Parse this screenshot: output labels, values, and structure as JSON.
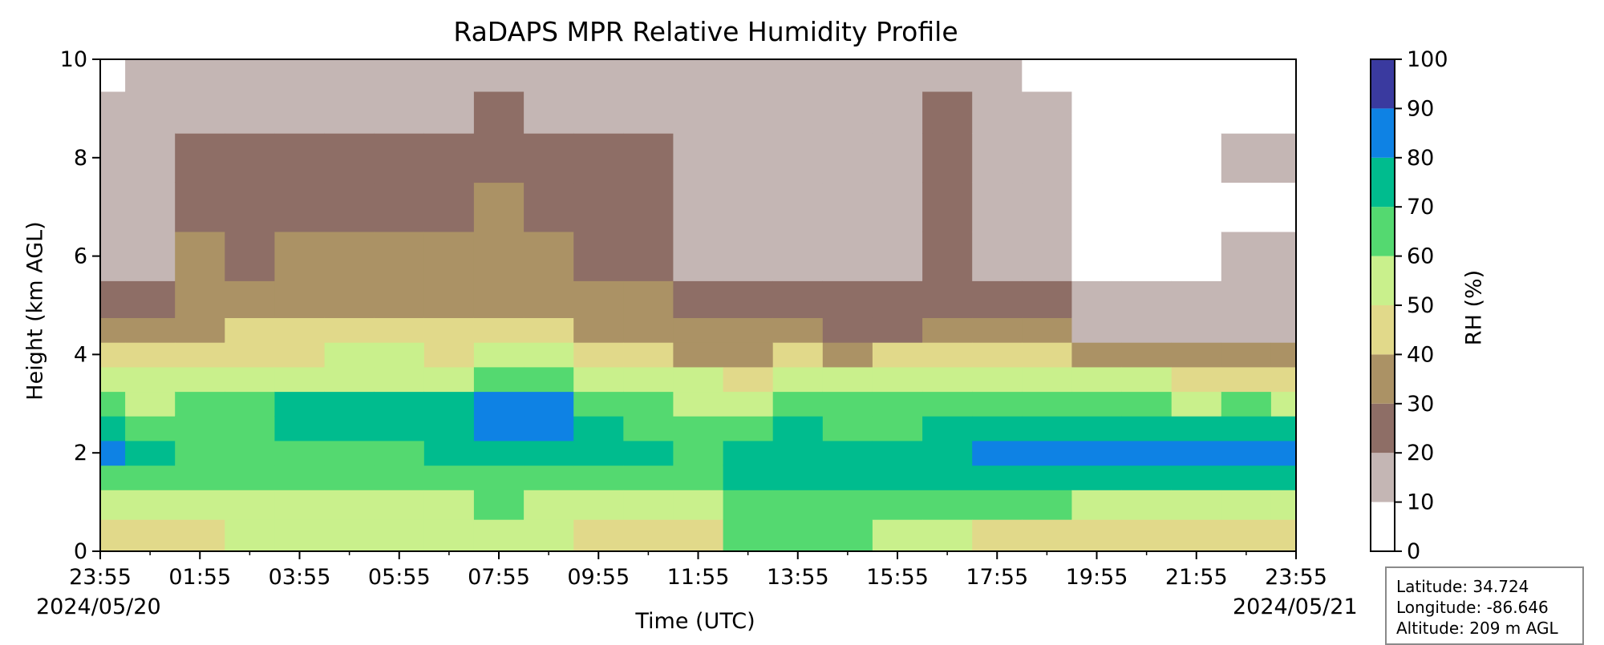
{
  "chart_data": {
    "type": "heatmap",
    "title": "RaDAPS MPR Relative Humidity Profile",
    "xlabel": "Time (UTC)",
    "ylabel": "Height (km AGL)",
    "xlim": [
      "2024-05-20 23:55",
      "2024-05-21 23:55"
    ],
    "ylim": [
      0,
      10
    ],
    "x_ticks": [
      "23:55",
      "01:55",
      "03:55",
      "05:55",
      "07:55",
      "09:55",
      "11:55",
      "13:55",
      "15:55",
      "17:55",
      "19:55",
      "21:55",
      "23:55"
    ],
    "y_ticks": [
      0,
      2,
      4,
      6,
      8,
      10
    ],
    "start_date": "2024/05/20",
    "end_date": "2024/05/21",
    "colorbar": {
      "label": "RH (%)",
      "ticks": [
        0,
        10,
        20,
        30,
        40,
        50,
        60,
        70,
        80,
        90,
        100
      ],
      "levels": [
        0,
        10,
        20,
        30,
        40,
        50,
        60,
        70,
        80,
        90,
        100
      ],
      "colors": [
        "#ffffff",
        "#c4b6b4",
        "#8e6e66",
        "#ab9265",
        "#e1d98a",
        "#c9f08c",
        "#54d970",
        "#00bc8e",
        "#0e82e4",
        "#3a3a9f"
      ]
    },
    "station": {
      "latitude": "Latitude: 34.724",
      "longitude": "Longitude: -86.646",
      "altitude": "Altitude: 209 m AGL"
    },
    "hours": [
      0,
      1,
      2,
      3,
      4,
      5,
      6,
      7,
      8,
      9,
      10,
      11,
      12,
      13,
      14,
      15,
      16,
      17,
      18,
      19,
      20,
      21,
      22,
      23,
      24
    ],
    "heights_km": [
      0.3,
      1.0,
      1.5,
      2.0,
      2.5,
      3.0,
      3.5,
      4.0,
      4.5,
      5.0,
      6.0,
      7.0,
      8.0,
      9.0,
      9.7
    ],
    "rh_profiles_percent": [
      [
        45,
        55,
        65,
        85,
        70,
        60,
        55,
        40,
        30,
        25,
        18,
        15,
        15,
        15,
        8
      ],
      [
        45,
        52,
        62,
        72,
        65,
        58,
        52,
        40,
        30,
        25,
        18,
        15,
        15,
        15,
        12
      ],
      [
        45,
        55,
        62,
        68,
        65,
        62,
        55,
        42,
        35,
        30,
        30,
        25,
        25,
        18,
        15
      ],
      [
        52,
        58,
        62,
        65,
        62,
        62,
        55,
        48,
        40,
        35,
        28,
        25,
        22,
        15,
        15
      ],
      [
        52,
        58,
        65,
        65,
        72,
        72,
        55,
        48,
        42,
        38,
        32,
        28,
        25,
        18,
        15
      ],
      [
        55,
        58,
        65,
        68,
        72,
        72,
        58,
        52,
        42,
        38,
        30,
        28,
        25,
        18,
        15
      ],
      [
        55,
        58,
        65,
        68,
        75,
        72,
        58,
        52,
        45,
        38,
        32,
        28,
        25,
        18,
        15
      ],
      [
        55,
        58,
        65,
        72,
        75,
        72,
        58,
        48,
        42,
        38,
        32,
        28,
        25,
        18,
        15
      ],
      [
        55,
        62,
        65,
        72,
        82,
        82,
        62,
        52,
        45,
        38,
        35,
        32,
        25,
        22,
        15
      ],
      [
        52,
        55,
        62,
        72,
        82,
        82,
        65,
        52,
        45,
        38,
        32,
        28,
        25,
        18,
        15
      ],
      [
        48,
        55,
        62,
        72,
        72,
        62,
        55,
        48,
        38,
        35,
        28,
        25,
        22,
        15,
        15
      ],
      [
        45,
        52,
        62,
        72,
        68,
        62,
        55,
        48,
        38,
        35,
        28,
        25,
        22,
        15,
        15
      ],
      [
        45,
        55,
        62,
        65,
        62,
        55,
        52,
        38,
        32,
        25,
        18,
        15,
        15,
        15,
        15
      ],
      [
        62,
        65,
        72,
        75,
        65,
        55,
        48,
        38,
        30,
        25,
        18,
        15,
        15,
        15,
        15
      ],
      [
        62,
        65,
        72,
        75,
        72,
        65,
        55,
        42,
        30,
        25,
        18,
        15,
        15,
        15,
        15
      ],
      [
        65,
        68,
        72,
        75,
        68,
        62,
        52,
        38,
        28,
        22,
        15,
        15,
        15,
        15,
        12
      ],
      [
        55,
        62,
        72,
        75,
        68,
        62,
        55,
        42,
        28,
        22,
        15,
        15,
        15,
        15,
        15
      ],
      [
        52,
        62,
        75,
        78,
        72,
        68,
        58,
        45,
        32,
        25,
        22,
        22,
        25,
        22,
        18
      ],
      [
        48,
        62,
        75,
        82,
        72,
        62,
        52,
        42,
        30,
        25,
        18,
        15,
        15,
        15,
        15
      ],
      [
        45,
        62,
        72,
        85,
        72,
        62,
        52,
        42,
        30,
        22,
        15,
        15,
        15,
        12,
        8
      ],
      [
        45,
        55,
        72,
        88,
        75,
        62,
        52,
        38,
        18,
        12,
        8,
        8,
        8,
        8,
        5
      ],
      [
        45,
        55,
        72,
        88,
        75,
        62,
        52,
        38,
        18,
        15,
        8,
        5,
        5,
        5,
        5
      ],
      [
        45,
        58,
        72,
        85,
        72,
        58,
        48,
        38,
        18,
        15,
        8,
        5,
        5,
        5,
        5
      ],
      [
        45,
        58,
        72,
        85,
        72,
        62,
        48,
        38,
        18,
        15,
        12,
        8,
        12,
        5,
        5
      ],
      [
        45,
        58,
        72,
        85,
        72,
        58,
        45,
        35,
        18,
        15,
        12,
        8,
        12,
        5,
        5
      ]
    ]
  }
}
